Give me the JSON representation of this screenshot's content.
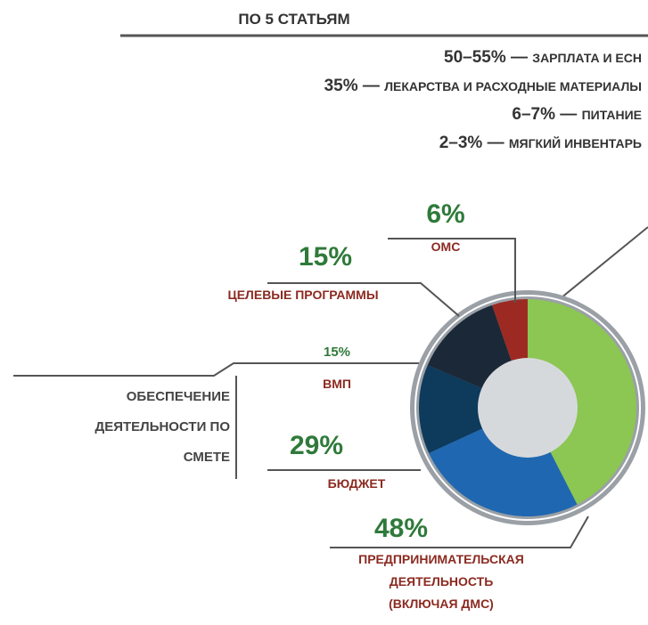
{
  "chart_data": {
    "type": "donut",
    "title": "ПО 5 СТАТЬЯМ",
    "breakdown": [
      {
        "share": "50–55%",
        "label": "ЗАРПЛАТА И ЕСН"
      },
      {
        "share": "35%",
        "label": "ЛЕКАРСТВА И РАСХОДНЫЕ МАТЕРИАЛЫ"
      },
      {
        "share": "6–7%",
        "label": "ПИТАНИЕ"
      },
      {
        "share": "2–3%",
        "label": "МЯГКИЙ ИНВЕНТАРЬ"
      }
    ],
    "group_label": [
      "ОБЕСПЕЧЕНИЕ",
      "ДЕЯТЕЛЬНОСТИ ПО",
      "СМЕТЕ"
    ],
    "categories": [
      [
        "ПРЕДПРИНИМАТЕЛЬСКАЯ",
        "ДЕЯТЕЛЬНОСТЬ",
        "(ВКЛЮЧАЯ ДМС)"
      ],
      [
        "БЮДЖЕТ"
      ],
      [
        "ВМП"
      ],
      [
        "ЦЕЛЕВЫЕ ПРОГРАММЫ"
      ],
      [
        "ОМС"
      ]
    ],
    "values": [
      48,
      29,
      15,
      15,
      6
    ],
    "value_labels": [
      "48%",
      "29%",
      "15%",
      "15%",
      "6%"
    ],
    "colors": [
      "#8cc653",
      "#1f67b0",
      "#0e3a5c",
      "#1b2838",
      "#9c2a22"
    ]
  }
}
